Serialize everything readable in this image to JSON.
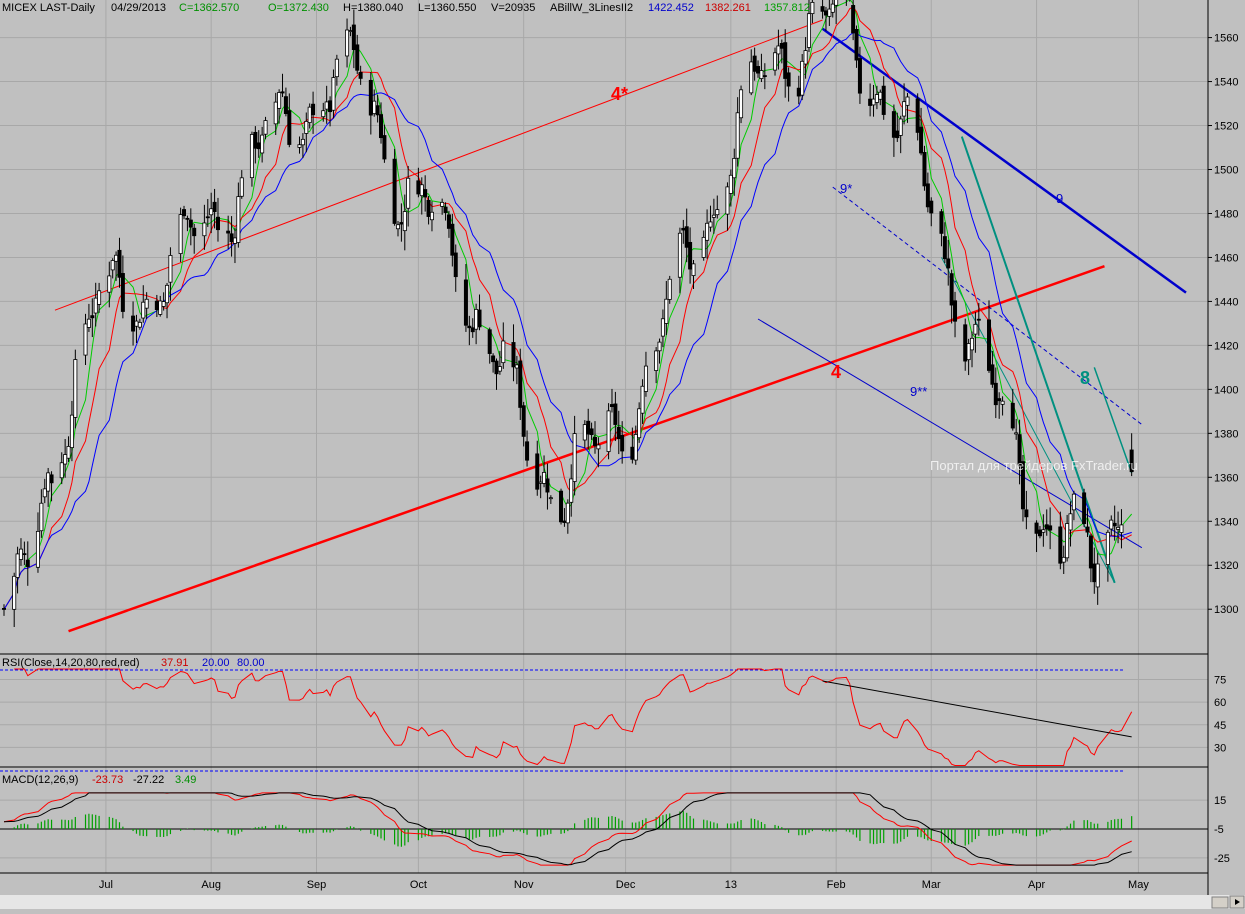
{
  "header": {
    "symbol": "MICEX LAST-Daily",
    "date": "04/29/2013",
    "close": "C=1362.570",
    "open": "O=1372.430",
    "high": "H=1380.040",
    "low": "L=1360.550",
    "volume": "V=20935",
    "indicator": "ABillW_3LinesII2",
    "ind_v1": "1422.452",
    "ind_v2": "1382.261",
    "ind_v3": "1357.812"
  },
  "rsi": {
    "label": "RSI(Close,14,20,80,red,red)",
    "v1": "37.91",
    "v2": "20.00",
    "v3": "80.00"
  },
  "macd": {
    "label": "MACD(12,26,9)",
    "v1": "-23.73",
    "v2": "-27.22",
    "v3": "3.49"
  },
  "watermark": "Портал для трейдеров FxTrader.ru",
  "annotations": {
    "a4star": "4*",
    "a4": "4",
    "a9star": "9*",
    "a9": "9",
    "a9dstar": "9**",
    "a8": "8"
  },
  "colors": {
    "background": "#c0c0c0",
    "green_ma": "#00cc00",
    "red_ma": "#ff0000",
    "blue_ma": "#0000ff",
    "channel_red": "#ff0000",
    "trend_blue": "#0000cc",
    "trend_teal": "#009080",
    "macd_hist": "#00a000"
  },
  "chart_data": [
    {
      "type": "candlestick",
      "x_labels": [
        "Jul",
        "Aug",
        "Sep",
        "Oct",
        "Nov",
        "Dec",
        "13",
        "Feb",
        "Mar",
        "Apr",
        "May"
      ],
      "y_ticks": [
        1300,
        1320,
        1340,
        1360,
        1380,
        1400,
        1420,
        1440,
        1460,
        1480,
        1500,
        1520,
        1540,
        1560
      ],
      "ylim": [
        1286,
        1568
      ],
      "grid": true,
      "key_points": [
        {
          "x": "2012-06-01",
          "y": 1300
        },
        {
          "x": "2012-07-01",
          "y": 1440
        },
        {
          "x": "2012-09-13",
          "y": 1540
        },
        {
          "x": "2012-10-01",
          "y": 1480
        },
        {
          "x": "2012-11-12",
          "y": 1360
        },
        {
          "x": "2013-01-28",
          "y": 1565
        },
        {
          "x": "2013-04-18",
          "y": 1322
        },
        {
          "x": "2013-04-29",
          "y": 1362.57
        }
      ],
      "last_bar": {
        "open": 1372.43,
        "high": 1380.04,
        "low": 1360.55,
        "close": 1362.57
      },
      "series": [
        {
          "name": "ABillW_3LinesII2 (blue)",
          "last": 1422.452
        },
        {
          "name": "ABillW_3LinesII2 (red)",
          "last": 1382.261
        },
        {
          "name": "ABillW_3LinesII2 (green)",
          "last": 1357.812
        }
      ]
    },
    {
      "type": "line",
      "title": "RSI(Close,14,20,80,red,red)",
      "y_ticks": [
        30,
        45,
        60,
        75
      ],
      "levels": [
        20,
        80
      ],
      "last": 37.91
    },
    {
      "type": "line",
      "title": "MACD(12,26,9)",
      "y_ticks": [
        15,
        -5,
        -25
      ],
      "values": {
        "macd": -23.73,
        "signal": -27.22,
        "histogram": 3.49
      }
    }
  ]
}
